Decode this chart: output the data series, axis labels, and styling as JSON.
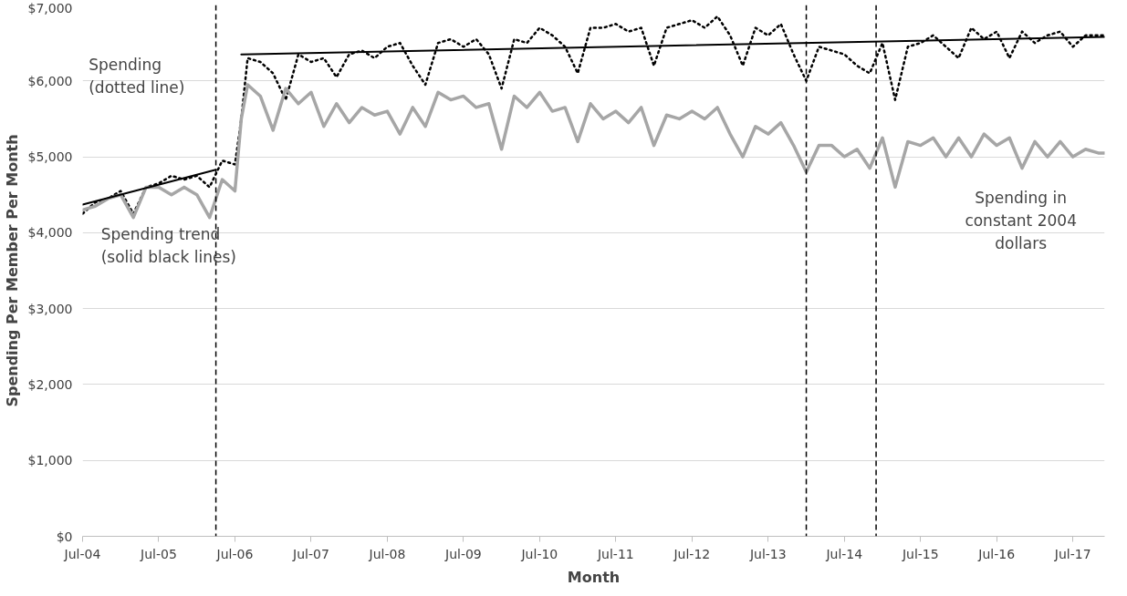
{
  "chart_data": {
    "type": "line",
    "xlabel": "Month",
    "ylabel": "Spending Per Member Per Month",
    "xlim": [
      "2004-07",
      "2017-12"
    ],
    "xticks": [
      {
        "value": "2004-07",
        "label": "Jul-04"
      },
      {
        "value": "2005-07",
        "label": "Jul-05"
      },
      {
        "value": "2006-07",
        "label": "Jul-06"
      },
      {
        "value": "2007-07",
        "label": "Jul-07"
      },
      {
        "value": "2008-07",
        "label": "Jul-08"
      },
      {
        "value": "2009-07",
        "label": "Jul-09"
      },
      {
        "value": "2010-07",
        "label": "Jul-10"
      },
      {
        "value": "2011-07",
        "label": "Jul-11"
      },
      {
        "value": "2012-07",
        "label": "Jul-12"
      },
      {
        "value": "2013-07",
        "label": "Jul-13"
      },
      {
        "value": "2014-07",
        "label": "Jul-14"
      },
      {
        "value": "2015-07",
        "label": "Jul-15"
      },
      {
        "value": "2016-07",
        "label": "Jul-16"
      },
      {
        "value": "2017-07",
        "label": "Jul-17"
      }
    ],
    "ylim": [
      0,
      7000
    ],
    "yticks": [
      {
        "value": 0,
        "label": "$0"
      },
      {
        "value": 1000,
        "label": "$1,000"
      },
      {
        "value": 2000,
        "label": "$2,000"
      },
      {
        "value": 3000,
        "label": "$3,000"
      },
      {
        "value": 4000,
        "label": "$4,000"
      },
      {
        "value": 5000,
        "label": "$5,000"
      },
      {
        "value": 6000,
        "label": "$6,000"
      },
      {
        "value": 7000,
        "label": "$7,000"
      }
    ],
    "grid": "y",
    "x": [
      "2004-07",
      "2004-09",
      "2004-11",
      "2005-01",
      "2005-03",
      "2005-05",
      "2005-07",
      "2005-09",
      "2005-11",
      "2006-01",
      "2006-03",
      "2006-05",
      "2006-07",
      "2006-08",
      "2006-09",
      "2006-11",
      "2007-01",
      "2007-03",
      "2007-05",
      "2007-07",
      "2007-09",
      "2007-11",
      "2008-01",
      "2008-03",
      "2008-05",
      "2008-07",
      "2008-09",
      "2008-11",
      "2009-01",
      "2009-03",
      "2009-05",
      "2009-07",
      "2009-09",
      "2009-11",
      "2010-01",
      "2010-03",
      "2010-05",
      "2010-07",
      "2010-09",
      "2010-11",
      "2011-01",
      "2011-03",
      "2011-05",
      "2011-07",
      "2011-09",
      "2011-11",
      "2012-01",
      "2012-03",
      "2012-05",
      "2012-07",
      "2012-09",
      "2012-11",
      "2013-01",
      "2013-03",
      "2013-05",
      "2013-07",
      "2013-09",
      "2013-11",
      "2014-01",
      "2014-03",
      "2014-05",
      "2014-07",
      "2014-09",
      "2014-11",
      "2015-01",
      "2015-03",
      "2015-05",
      "2015-07",
      "2015-09",
      "2015-11",
      "2016-01",
      "2016-03",
      "2016-05",
      "2016-07",
      "2016-09",
      "2016-11",
      "2017-01",
      "2017-03",
      "2017-05",
      "2017-07",
      "2017-09",
      "2017-11",
      "2017-12"
    ],
    "series": [
      {
        "color": "#000000",
        "line_style": "dotted",
        "values": [
          4250,
          4400,
          4450,
          4550,
          4250,
          4600,
          4650,
          4750,
          4700,
          4750,
          4600,
          4950,
          4900,
          5500,
          6300,
          6250,
          6100,
          5750,
          6350,
          6250,
          6300,
          6050,
          6350,
          6400,
          6300,
          6450,
          6500,
          6200,
          5950,
          6500,
          6550,
          6450,
          6550,
          6350,
          5900,
          6550,
          6500,
          6700,
          6600,
          6450,
          6100,
          6700,
          6700,
          6750,
          6650,
          6700,
          6200,
          6700,
          6750,
          6800,
          6700,
          6850,
          6600,
          6200,
          6700,
          6600,
          6750,
          6350,
          6000,
          6450,
          6400,
          6350,
          6200,
          6100,
          6500,
          5750,
          6450,
          6500,
          6600,
          6450,
          6300,
          6700,
          6550,
          6650,
          6300,
          6650,
          6500,
          6600,
          6650,
          6450,
          6600,
          6600,
          6600
        ]
      },
      {
        "color": "#a6a6a6",
        "line_style": "solid",
        "values": [
          4300,
          4350,
          4450,
          4500,
          4200,
          4600,
          4600,
          4500,
          4600,
          4500,
          4200,
          4700,
          4550,
          5500,
          5950,
          5800,
          5350,
          5900,
          5700,
          5850,
          5400,
          5700,
          5450,
          5650,
          5550,
          5600,
          5300,
          5650,
          5400,
          5850,
          5750,
          5800,
          5650,
          5700,
          5100,
          5800,
          5650,
          5850,
          5600,
          5650,
          5200,
          5700,
          5500,
          5600,
          5450,
          5650,
          5150,
          5550,
          5500,
          5600,
          5500,
          5650,
          5300,
          5000,
          5400,
          5300,
          5450,
          5150,
          4800,
          5150,
          5150,
          5000,
          5100,
          4850,
          5250,
          4600,
          5200,
          5150,
          5250,
          5000,
          5250,
          5000,
          5300,
          5150,
          5250,
          4850,
          5200,
          5000,
          5200,
          5000,
          5100,
          5050,
          5050
        ]
      },
      {
        "type": "line",
        "color": "#000000",
        "line_style": "solid",
        "x": [
          "2004-07",
          "2006-04"
        ],
        "values": [
          4370,
          4830
        ]
      },
      {
        "type": "line",
        "color": "#000000",
        "line_style": "solid",
        "x": [
          "2006-08",
          "2017-12"
        ],
        "values": [
          6350,
          6580
        ]
      }
    ],
    "ref_lines": [
      {
        "axis": "x",
        "value": "2006-04",
        "color": "#000000",
        "line_style": "dashed"
      },
      {
        "axis": "x",
        "value": "2014-01",
        "color": "#000000",
        "line_style": "dashed"
      },
      {
        "axis": "x",
        "value": "2014-12",
        "color": "#000000",
        "line_style": "dashed"
      }
    ],
    "annotations": [
      "Spending\n(dotted line)",
      "Spending trend\n(solid black lines)",
      "Spending in\nconstant 2004\ndollars"
    ]
  }
}
